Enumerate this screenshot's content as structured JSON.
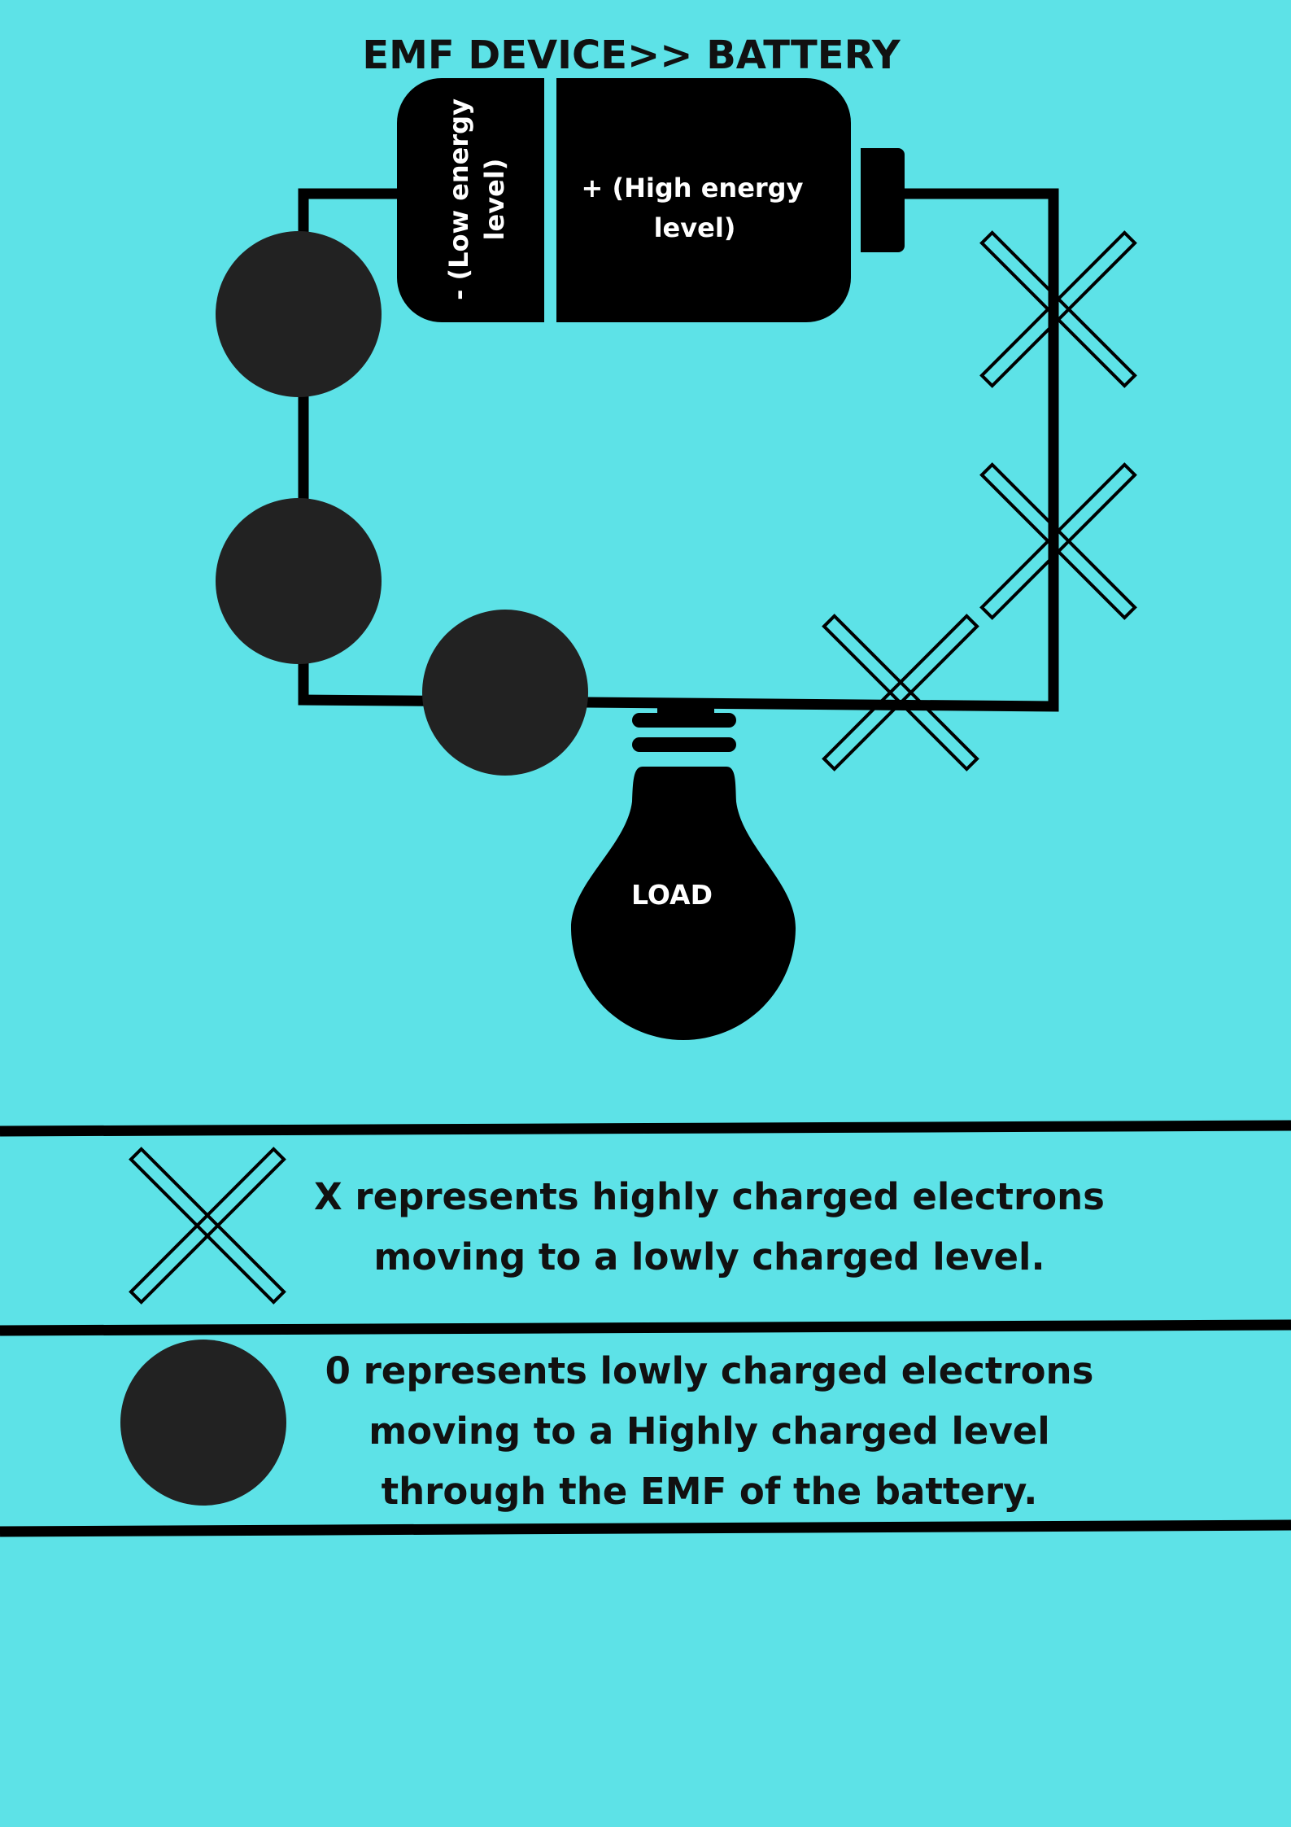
{
  "title": "EMF DEVICE>> BATTERY",
  "battery": {
    "negative_label_line1": "- (Low energy",
    "negative_label_line2": "level)",
    "positive_label_line1": "+ (High energy",
    "positive_label_line2": "level)"
  },
  "load": {
    "label": "LOAD"
  },
  "legend": {
    "x_line1": "X represents highly charged  electrons",
    "x_line2": "moving to a lowly charged level.",
    "o_line1": "0 represents lowly charged  electrons",
    "o_line2": "moving to a Highly charged level",
    "o_line3": "through the EMF of the battery."
  },
  "colors": {
    "background": "#5de2e7",
    "ink": "#000000",
    "electron_fill": "#222222",
    "label_text": "#ffffff"
  }
}
